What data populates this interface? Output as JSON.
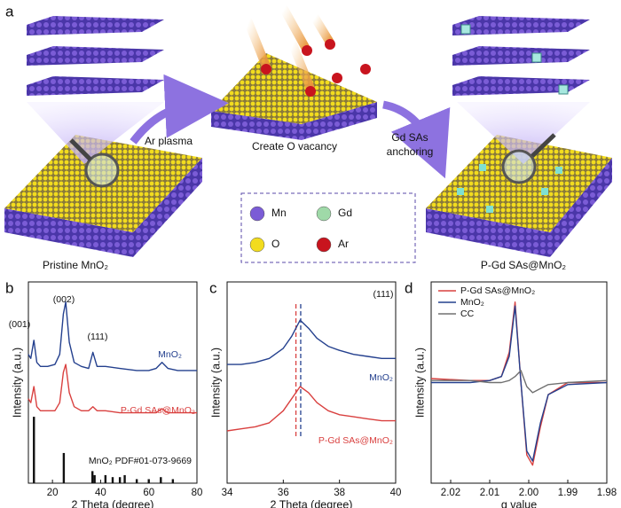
{
  "figure": {
    "panels": [
      "a",
      "b",
      "c",
      "d"
    ],
    "schematic": {
      "arrow1_label": "Ar plasma",
      "middle_label": "Create O vacancy",
      "arrow2_label": [
        "Gd SAs",
        "anchoring"
      ],
      "left_label": "Pristine MnO₂",
      "right_label": "P-Gd SAs@MnO₂",
      "legend": [
        {
          "label": "Mn",
          "color": "#7b5cd6"
        },
        {
          "label": "Gd",
          "color": "#9fd9a8"
        },
        {
          "label": "O",
          "color": "#f2dc1e"
        },
        {
          "label": "Ar",
          "color": "#c8141e"
        }
      ]
    }
  },
  "chart_data": [
    {
      "type": "line",
      "xlabel": "2 Theta (degree)",
      "ylabel": "Intensity (a.u.)",
      "xlim": [
        10,
        80
      ],
      "xticks": [
        20,
        40,
        60,
        80
      ],
      "ylim": [
        0,
        100
      ],
      "annotations": [
        "(001)",
        "(002)",
        "(111)"
      ],
      "x": [
        10,
        11,
        12.3,
        13.5,
        15,
        18,
        21,
        23,
        24.5,
        25.5,
        27,
        29,
        32,
        35,
        36.8,
        38.5,
        42,
        48,
        55,
        60,
        63,
        65.5,
        68,
        72,
        80
      ],
      "series": [
        {
          "name": "MnO₂",
          "color": "#24408e",
          "values": [
            64,
            62,
            71,
            60,
            58,
            58,
            59,
            64,
            84,
            90,
            70,
            60,
            58,
            57,
            65,
            58,
            58,
            57,
            56,
            56,
            57,
            60,
            57,
            56,
            56
          ]
        },
        {
          "name": "P-Gd SAs@MnO₂",
          "color": "#d9403f",
          "values": [
            42,
            40,
            48,
            38,
            36,
            36,
            36,
            40,
            55,
            59,
            45,
            38,
            36,
            36,
            38,
            36,
            36,
            35,
            35,
            35,
            35,
            37,
            35,
            35,
            35
          ]
        }
      ],
      "reference": {
        "name": "MnO₂ PDF#01-073-9669",
        "color": "#111111",
        "x": [
          12.3,
          24.7,
          36.6,
          37.5,
          42,
          45,
          48,
          50,
          55,
          60,
          65,
          70
        ],
        "values": [
          33,
          15,
          6,
          4,
          4,
          3,
          3,
          4,
          2,
          2,
          3,
          2
        ]
      }
    },
    {
      "type": "line",
      "xlabel": "2 Theta (degree)",
      "ylabel": "Intensity (a.u.)",
      "xlim": [
        34,
        40
      ],
      "xticks": [
        34,
        36,
        38,
        40
      ],
      "ylim": [
        0,
        100
      ],
      "annotations": [
        "(111)"
      ],
      "x": [
        34,
        34.5,
        35,
        35.5,
        36,
        36.3,
        36.6,
        36.9,
        37.2,
        37.6,
        38,
        38.5,
        39,
        39.5,
        40
      ],
      "series": [
        {
          "name": "MnO₂",
          "color": "#24408e",
          "values": [
            59,
            59,
            60,
            62,
            67,
            73,
            81,
            77,
            72,
            68,
            66,
            64,
            63,
            62,
            62
          ]
        },
        {
          "name": "P-Gd SAs@MnO₂",
          "color": "#d9403f",
          "values": [
            26,
            27,
            28,
            30,
            36,
            42,
            48,
            45,
            40,
            36,
            34,
            33,
            32,
            31,
            31
          ]
        }
      ],
      "markers": [
        {
          "x": 36.45,
          "color": "#d9403f"
        },
        {
          "x": 36.62,
          "color": "#24408e"
        }
      ]
    },
    {
      "type": "line",
      "xlabel": "g value",
      "ylabel": "Intensity (a.u.)",
      "xlim": [
        2.025,
        1.98
      ],
      "xticks": [
        2.02,
        2.01,
        {
          "value": 2,
          "label": "2.00"
        },
        1.99,
        1.98
      ],
      "ylim": [
        0,
        100
      ],
      "legend": "upper left",
      "x": [
        2.025,
        2.015,
        2.01,
        2.007,
        2.005,
        2.0035,
        2.002,
        2.0005,
        1.999,
        1.997,
        1.995,
        1.99,
        1.98
      ],
      "series": [
        {
          "name": "P-Gd SAs@MnO₂",
          "color": "#d9403f",
          "values": [
            52,
            51,
            51,
            53,
            65,
            90,
            50,
            14,
            9,
            28,
            44,
            50,
            50
          ]
        },
        {
          "name": "MnO₂",
          "color": "#24408e",
          "values": [
            50,
            50,
            51,
            53,
            63,
            88,
            50,
            16,
            11,
            30,
            44,
            49,
            50
          ]
        },
        {
          "name": "CC",
          "color": "#707070",
          "values": [
            51,
            51,
            50,
            50,
            51,
            53,
            56,
            48,
            45,
            47,
            49,
            50,
            51
          ]
        }
      ]
    }
  ]
}
